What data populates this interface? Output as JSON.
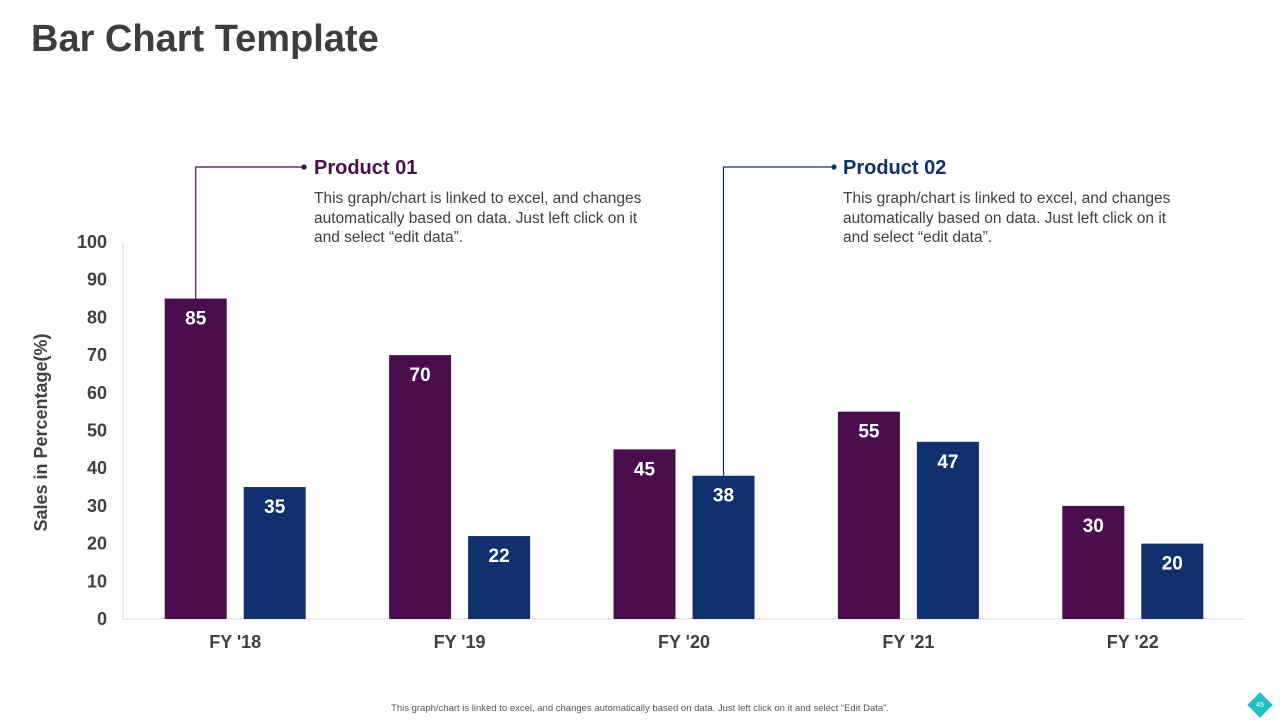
{
  "slide": {
    "title": "Bar Chart Template",
    "footer_note": "This graph/chart is linked to excel, and changes automatically based on data. Just left click on it and select “Edit Data”.",
    "page_number": "45",
    "accent_color": "#22bfc9"
  },
  "callouts": [
    {
      "title": "Product 01",
      "body": "This graph/chart is linked to excel, and changes automatically based on data. Just left click on it and select “edit data”.",
      "color": "#4a0e4e"
    },
    {
      "title": "Product 02",
      "body": "This graph/chart is linked to excel, and changes automatically based on data. Just left click on it and select “edit data”.",
      "color": "#10306e"
    }
  ],
  "chart_data": {
    "type": "bar",
    "title": "",
    "xlabel": "",
    "ylabel": "Sales in Percentage(%)",
    "categories": [
      "FY '18",
      "FY '19",
      "FY '20",
      "FY '21",
      "FY '22"
    ],
    "series": [
      {
        "name": "Product 01",
        "values": [
          85,
          70,
          45,
          55,
          30
        ],
        "color": "#4a0e4e"
      },
      {
        "name": "Product 02",
        "values": [
          35,
          22,
          38,
          47,
          20
        ],
        "color": "#10306e"
      }
    ],
    "ylim": [
      0,
      100
    ],
    "yticks": [
      0,
      10,
      20,
      30,
      40,
      50,
      60,
      70,
      80,
      90,
      100
    ],
    "grid": false,
    "data_labels": true
  }
}
